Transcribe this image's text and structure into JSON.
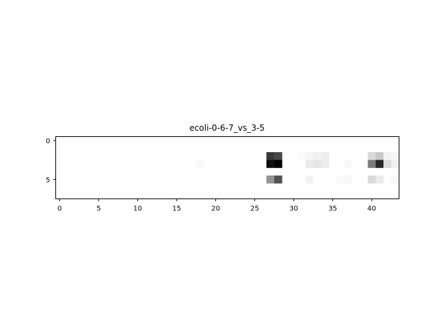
{
  "chart_data": {
    "type": "heatmap",
    "title": "ecoli-0-6-7_vs_3-5",
    "xlabel": "",
    "ylabel": "",
    "colormap": "gray_r",
    "n_cols": 44,
    "n_rows": 8,
    "xlim": [
      -0.5,
      43.5
    ],
    "ylim": [
      7.5,
      -0.5
    ],
    "xticks": [
      0,
      5,
      10,
      15,
      20,
      25,
      30,
      35,
      40
    ],
    "yticks": [
      0,
      5
    ],
    "cells": [
      {
        "row": 2,
        "col": 27,
        "value": 0.78
      },
      {
        "row": 2,
        "col": 28,
        "value": 0.72
      },
      {
        "row": 3,
        "col": 27,
        "value": 0.95
      },
      {
        "row": 3,
        "col": 28,
        "value": 1.0
      },
      {
        "row": 5,
        "col": 27,
        "value": 0.42
      },
      {
        "row": 5,
        "col": 28,
        "value": 0.68
      },
      {
        "row": 3,
        "col": 18,
        "value": 0.02
      },
      {
        "row": 2,
        "col": 31,
        "value": 0.02
      },
      {
        "row": 2,
        "col": 32,
        "value": 0.04
      },
      {
        "row": 2,
        "col": 33,
        "value": 0.05
      },
      {
        "row": 2,
        "col": 34,
        "value": 0.07
      },
      {
        "row": 3,
        "col": 32,
        "value": 0.08
      },
      {
        "row": 3,
        "col": 33,
        "value": 0.1
      },
      {
        "row": 3,
        "col": 34,
        "value": 0.08
      },
      {
        "row": 3,
        "col": 37,
        "value": 0.03
      },
      {
        "row": 5,
        "col": 32,
        "value": 0.05
      },
      {
        "row": 5,
        "col": 36,
        "value": 0.02
      },
      {
        "row": 5,
        "col": 37,
        "value": 0.03
      },
      {
        "row": 2,
        "col": 40,
        "value": 0.15
      },
      {
        "row": 2,
        "col": 41,
        "value": 0.22
      },
      {
        "row": 2,
        "col": 42,
        "value": 0.05
      },
      {
        "row": 2,
        "col": 43,
        "value": 0.03
      },
      {
        "row": 3,
        "col": 40,
        "value": 0.52
      },
      {
        "row": 3,
        "col": 41,
        "value": 0.85
      },
      {
        "row": 3,
        "col": 42,
        "value": 0.14
      },
      {
        "row": 3,
        "col": 43,
        "value": 0.06
      },
      {
        "row": 5,
        "col": 40,
        "value": 0.15
      },
      {
        "row": 5,
        "col": 41,
        "value": 0.08
      },
      {
        "row": 5,
        "col": 43,
        "value": 0.03
      }
    ]
  }
}
